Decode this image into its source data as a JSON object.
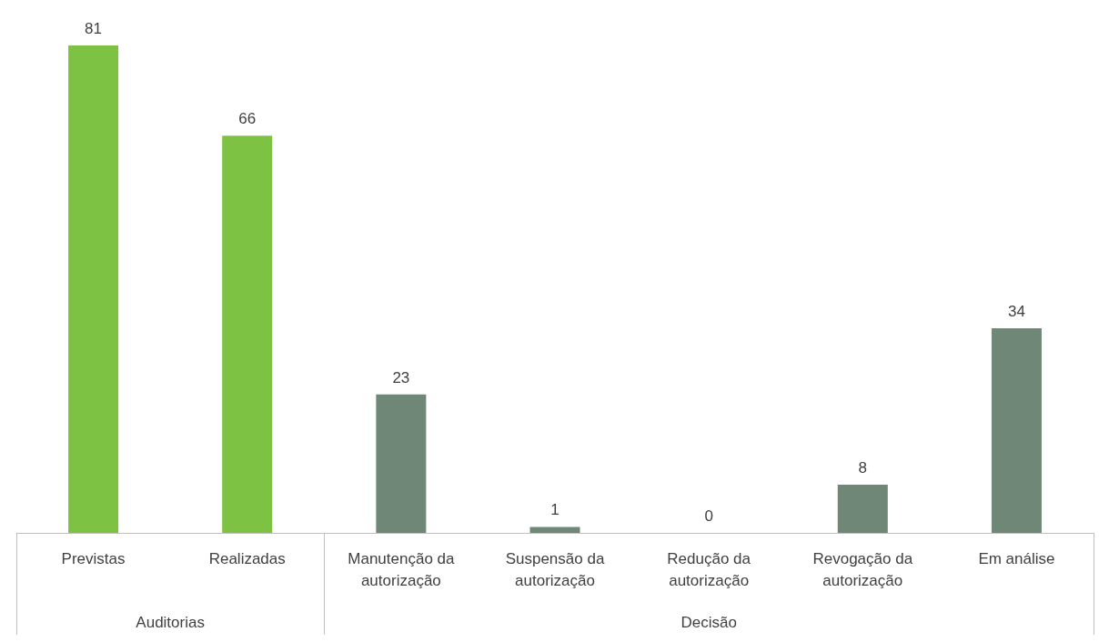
{
  "chart_data": {
    "type": "bar",
    "categories": [
      "Previstas",
      "Realizadas",
      "Manutenção da autorização",
      "Suspensão da autorização",
      "Redução da autorização",
      "Revogação da autorização",
      "Em análise"
    ],
    "values": [
      81,
      66,
      23,
      1,
      0,
      8,
      34
    ],
    "colors": [
      "#7dc242",
      "#7dc242",
      "#6e8776",
      "#6e8776",
      "#6e8776",
      "#6e8776",
      "#6e8776"
    ],
    "data_labels": true,
    "annotations": [
      "Auditorias",
      "Decisão"
    ]
  }
}
